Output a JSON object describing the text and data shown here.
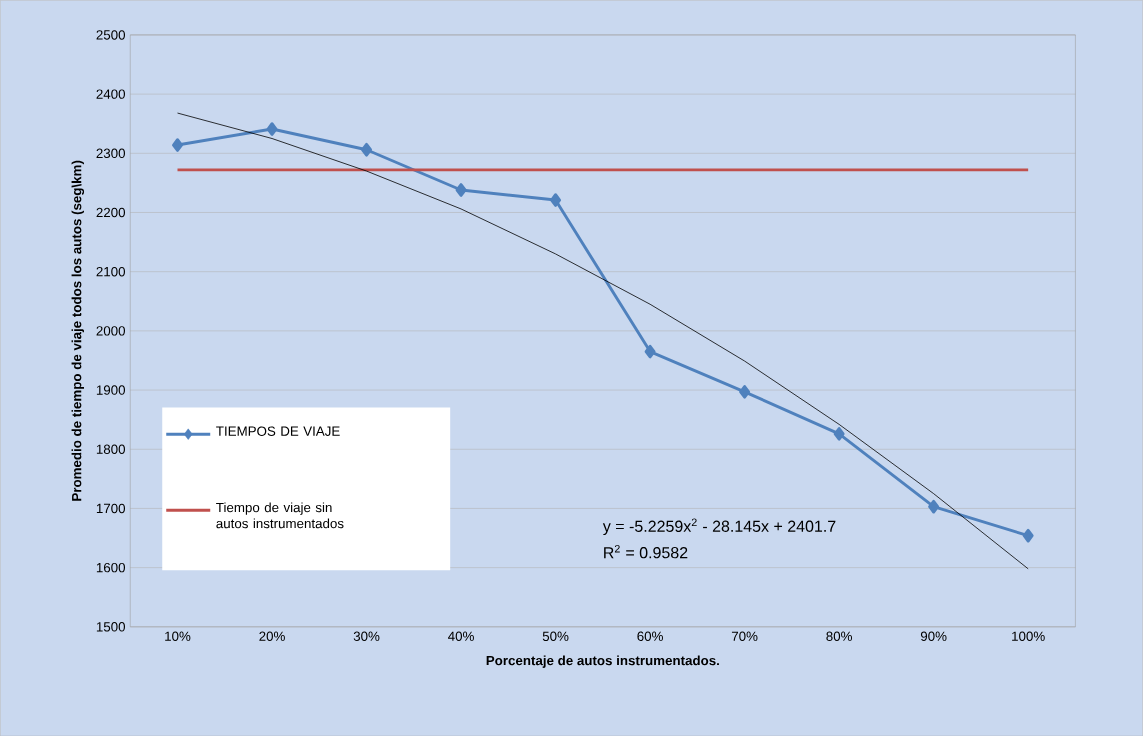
{
  "chart_data": {
    "type": "line",
    "xlabel": "Porcentaje de autos instrumentados.",
    "ylabel": "Promedio de tiempo de viaje todos los autos (seg\\km)",
    "categories": [
      "10%",
      "20%",
      "30%",
      "40%",
      "50%",
      "60%",
      "70%",
      "80%",
      "90%",
      "100%"
    ],
    "series": [
      {
        "name": "TIEMPOS DE VIAJE",
        "color": "#4f81bd",
        "marker": "diamond",
        "values": [
          2314,
          2341,
          2306,
          2238,
          2221,
          1965,
          1897,
          1826,
          1703,
          1654
        ]
      },
      {
        "name": "Tiempo de viaje sin autos instrumentados",
        "color": "#c0504d",
        "marker": "none",
        "values": [
          2272,
          2272,
          2272,
          2272,
          2272,
          2272,
          2272,
          2272,
          2272,
          2272
        ]
      },
      {
        "color": "#000000",
        "marker": "none",
        "values": [
          2368,
          2325,
          2270,
          2206,
          2130,
          2045,
          1949,
          1842,
          1725,
          1598
        ]
      }
    ],
    "ylim": [
      1500,
      2500
    ],
    "yticks": [
      1500,
      1600,
      1700,
      1800,
      1900,
      2000,
      2100,
      2200,
      2300,
      2400,
      2500
    ],
    "grid": "y",
    "legend": "bottom left",
    "annotations": [
      "y = -5.2259x$^{2}$ - 28.145x + 2401.7",
      "R$^{2}$ = 0.9582"
    ]
  }
}
